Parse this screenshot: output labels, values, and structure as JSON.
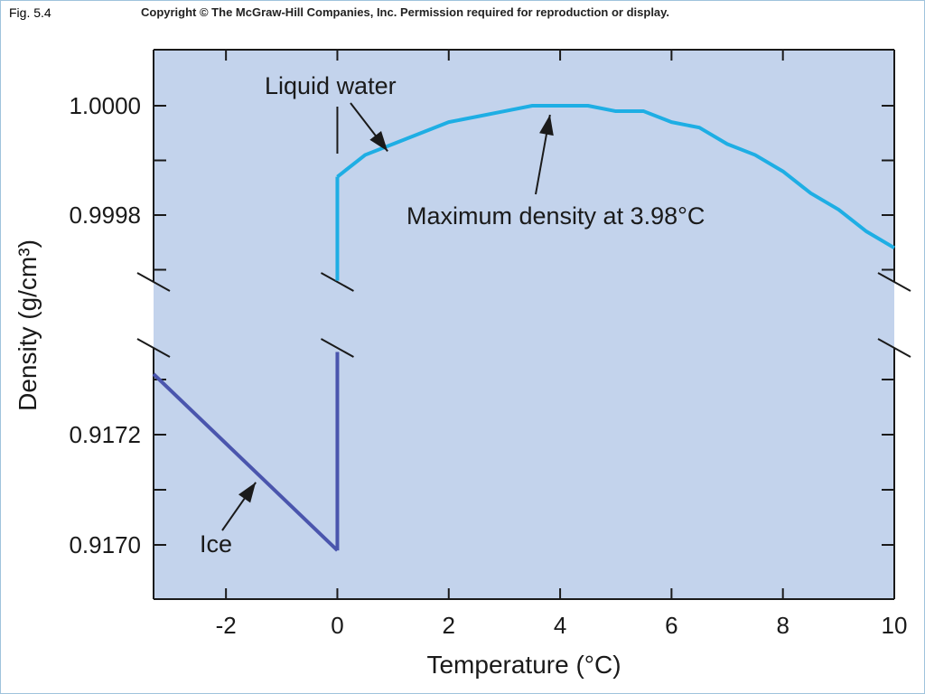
{
  "header": {
    "figure_label": "Fig. 5.4",
    "copyright": "Copyright © The McGraw-Hill Companies, Inc. Permission required for reproduction or display."
  },
  "colors": {
    "plot_background": "#c3d3ec",
    "liquid_series": "#1eaee4",
    "ice_series": "#4a55ad",
    "axis": "#1a1a1a"
  },
  "chart_data": {
    "type": "line",
    "xlabel": "Temperature (°C)",
    "ylabel": "Density (g/cm³)",
    "xlim": [
      -3.3,
      10
    ],
    "x_ticks": [
      -2,
      0,
      2,
      4,
      6,
      8,
      10
    ],
    "x_tick_labels": [
      "-2",
      "0",
      "2",
      "4",
      "6",
      "8",
      "10"
    ],
    "y_axis_broken": true,
    "y_segments": [
      {
        "range": [
          0.99965,
          1.0001
        ],
        "ticks": [
          0.9997,
          0.9998,
          0.9999,
          1.0
        ],
        "tick_labels": [
          "0.9998",
          "1.0000"
        ],
        "labeled_ticks": [
          0.9998,
          1.0
        ]
      },
      {
        "range": [
          0.9169,
          0.91745
        ],
        "ticks": [
          0.917,
          0.9171,
          0.9172,
          0.9173
        ],
        "tick_labels": [
          "0.9170",
          "0.9172"
        ],
        "labeled_ticks": [
          0.917,
          0.9172
        ]
      }
    ],
    "series": [
      {
        "segment": 0,
        "x": [
          0,
          0.5,
          1,
          1.5,
          2,
          2.5,
          3,
          3.5,
          3.98,
          4.5,
          5,
          5.5,
          6,
          6.5,
          7,
          7.5,
          8,
          8.5,
          9,
          9.5,
          10
        ],
        "y": [
          0.99987,
          0.99991,
          0.99993,
          0.99995,
          0.99997,
          0.99998,
          0.99999,
          1.0,
          1.0,
          1.0,
          0.99999,
          0.99999,
          0.99997,
          0.99996,
          0.99993,
          0.99991,
          0.99988,
          0.99984,
          0.99981,
          0.99977,
          0.99974
        ],
        "vertical_drop": {
          "x": 0,
          "y_from": 0.99987,
          "y_to": 0.99968
        }
      },
      {
        "segment": 1,
        "x": [
          -3.3,
          0
        ],
        "y": [
          0.91731,
          0.91699
        ],
        "vertical_rise": {
          "x": 0,
          "y_from": 0.91699,
          "y_to": 0.91735
        }
      }
    ],
    "annotations": [
      {
        "text": "Liquid water",
        "points_to": {
          "x": 1.0,
          "y": 0.99993,
          "segment": 0
        }
      },
      {
        "text": "Maximum density at 3.98°C",
        "points_to": {
          "x": 3.98,
          "y": 1.0,
          "segment": 0
        }
      },
      {
        "text": "Ice",
        "points_to": {
          "x": -1.4,
          "y": 0.91712,
          "segment": 1
        }
      }
    ],
    "grid": false
  }
}
